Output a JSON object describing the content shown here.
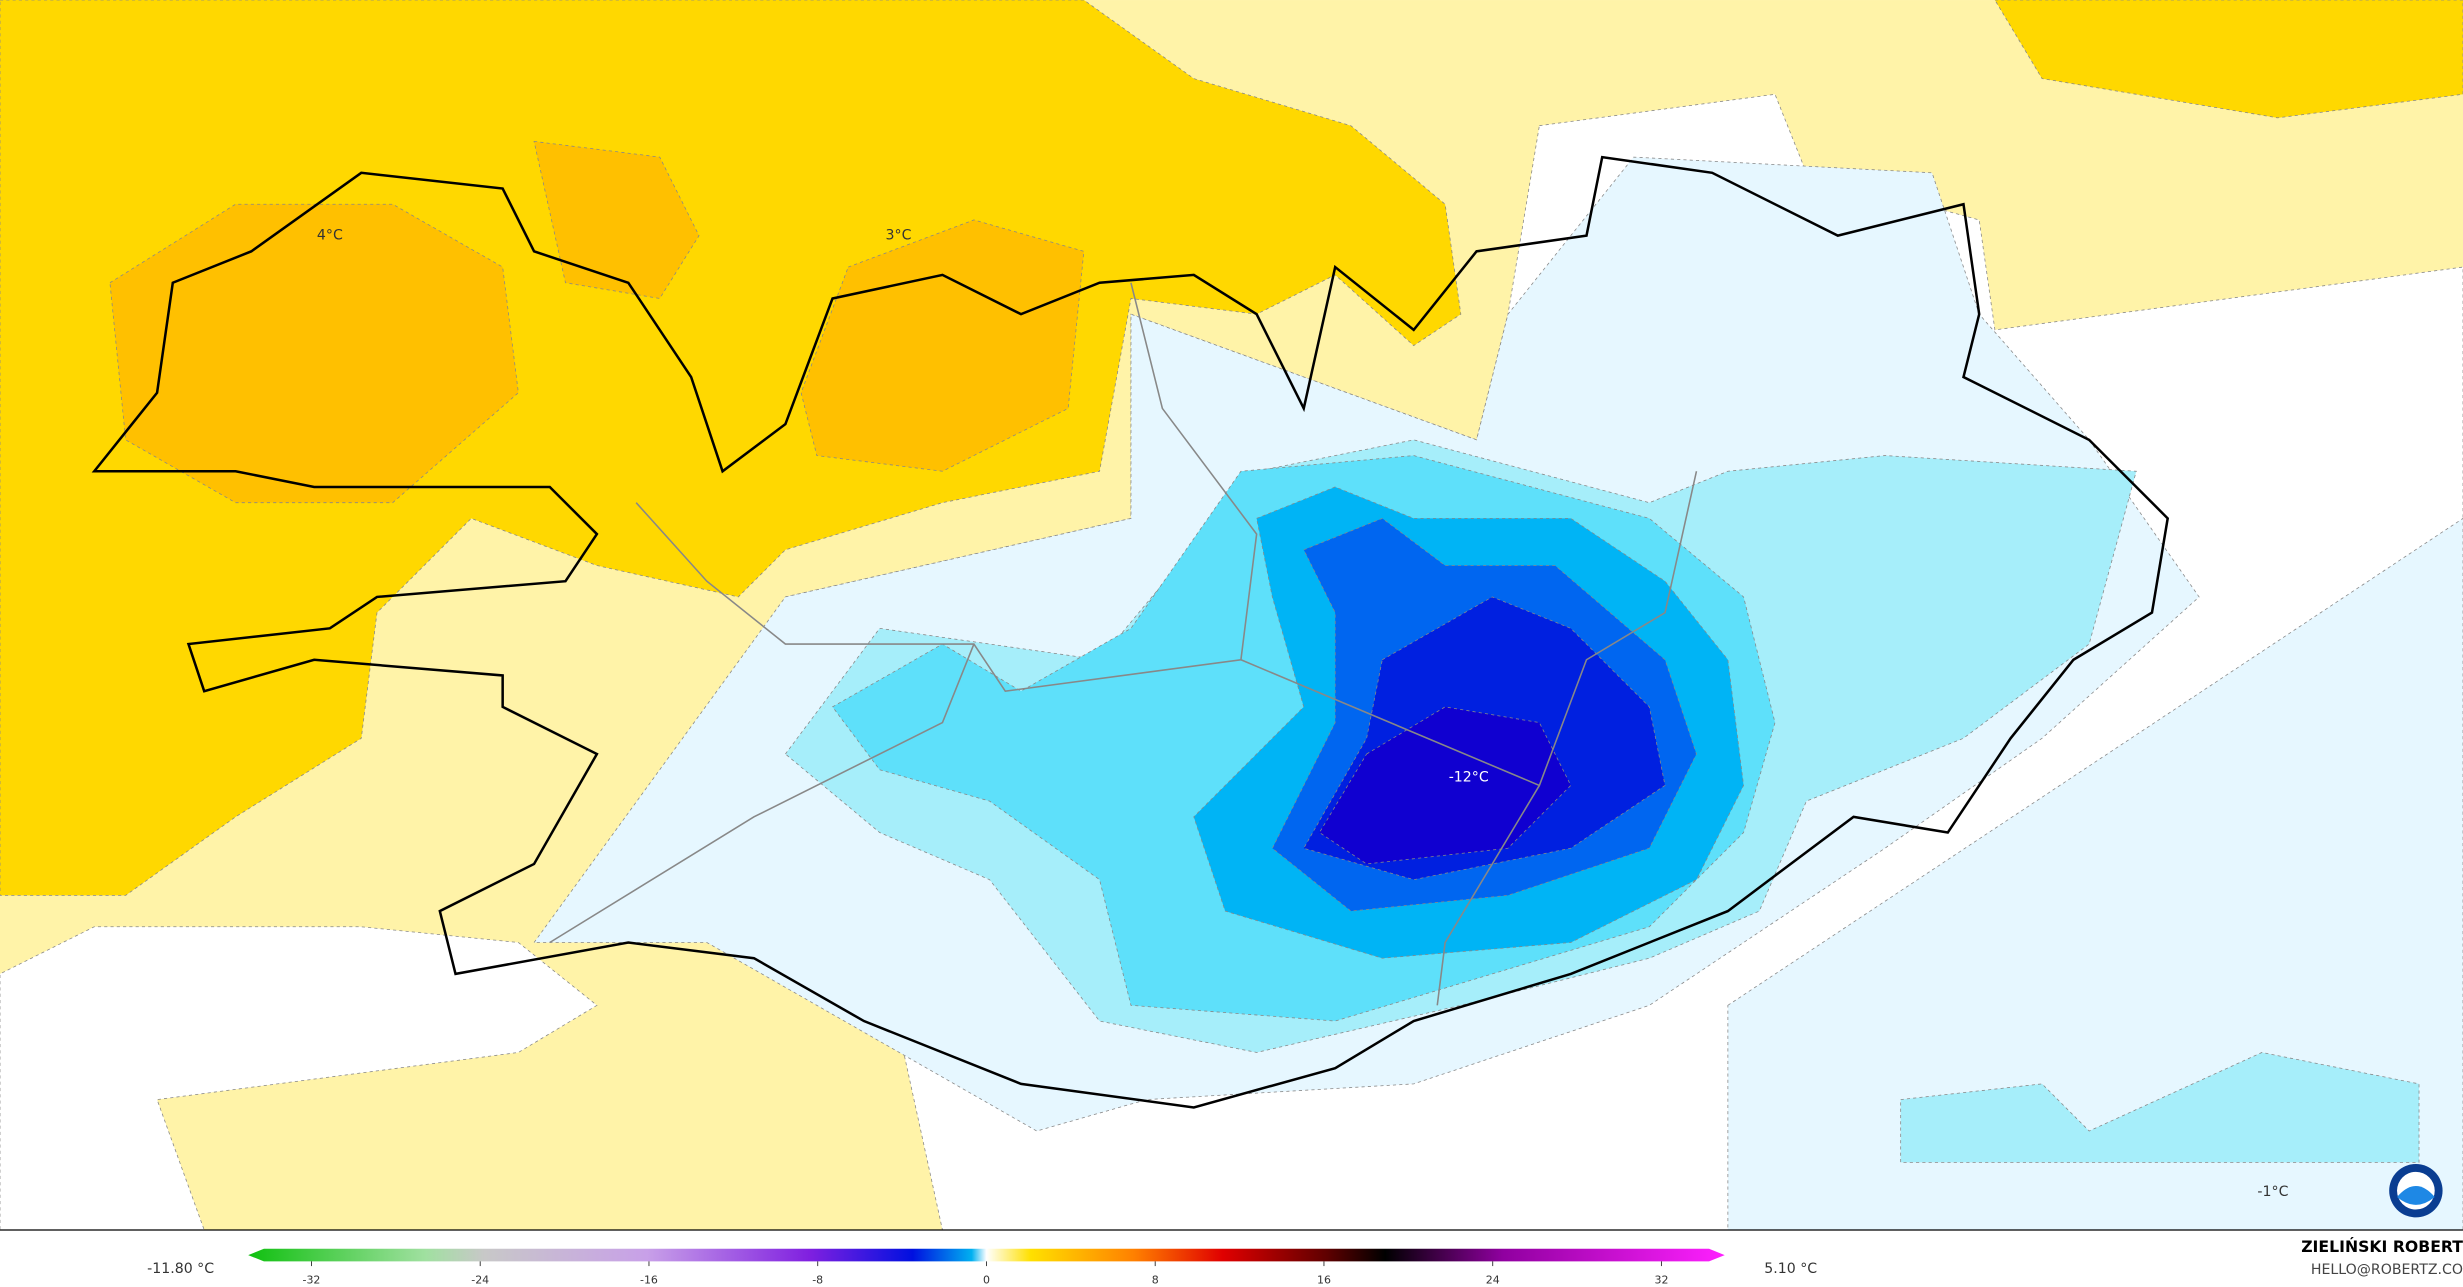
{
  "map": {
    "labels": [
      {
        "text": "4°C"
      },
      {
        "text": "3°C"
      },
      {
        "text": "-12°C"
      },
      {
        "text": "-1°C"
      }
    ]
  },
  "legend": {
    "min_label": "-11.80 °C",
    "max_label": "5.10 °C",
    "range": [
      -35,
      35
    ],
    "ticks": [
      -32,
      -24,
      -16,
      -8,
      0,
      8,
      16,
      24,
      32
    ]
  },
  "credit": {
    "name": "ZIELIŃSKI ROBERT",
    "contact": "HELLO@ROBERTZ.CO"
  }
}
